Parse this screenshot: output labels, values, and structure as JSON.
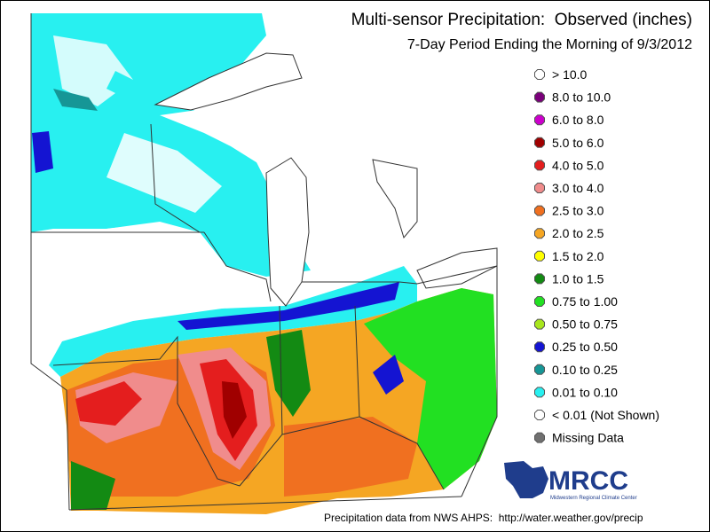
{
  "header": {
    "title": "Multi-sensor Precipitation:  Observed (inches)",
    "subtitle": "7-Day Period Ending the Morning of 9/3/2012"
  },
  "legend": {
    "items": [
      {
        "label": "> 10.0",
        "color": "#ffffff"
      },
      {
        "label": "8.0 to 10.0",
        "color": "#7a007a"
      },
      {
        "label": "6.0 to 8.0",
        "color": "#cc00cc"
      },
      {
        "label": "5.0 to 6.0",
        "color": "#a00000"
      },
      {
        "label": "4.0 to 5.0",
        "color": "#e41e1e"
      },
      {
        "label": "3.0 to 4.0",
        "color": "#f08c8c"
      },
      {
        "label": "2.5 to 3.0",
        "color": "#f07020"
      },
      {
        "label": "2.0 to 2.5",
        "color": "#f5a623"
      },
      {
        "label": "1.5 to 2.0",
        "color": "#ffff00"
      },
      {
        "label": "1.0 to 1.5",
        "color": "#138a13"
      },
      {
        "label": "0.75 to 1.00",
        "color": "#22e022"
      },
      {
        "label": "0.50 to 0.75",
        "color": "#a8e61e"
      },
      {
        "label": "0.25 to 0.50",
        "color": "#1414d2"
      },
      {
        "label": "0.10 to 0.25",
        "color": "#169696"
      },
      {
        "label": "0.01 to 0.10",
        "color": "#28f0f0"
      },
      {
        "label": "< 0.01 (Not Shown)",
        "color": "#ffffff"
      },
      {
        "label": "Missing Data",
        "color": "#707070"
      }
    ]
  },
  "logo": {
    "name": "MRCC",
    "full_name": "Midwestern Regional Climate Center"
  },
  "footer": "Precipitation data from NWS AHPS:  http://water.weather.gov/precip"
}
